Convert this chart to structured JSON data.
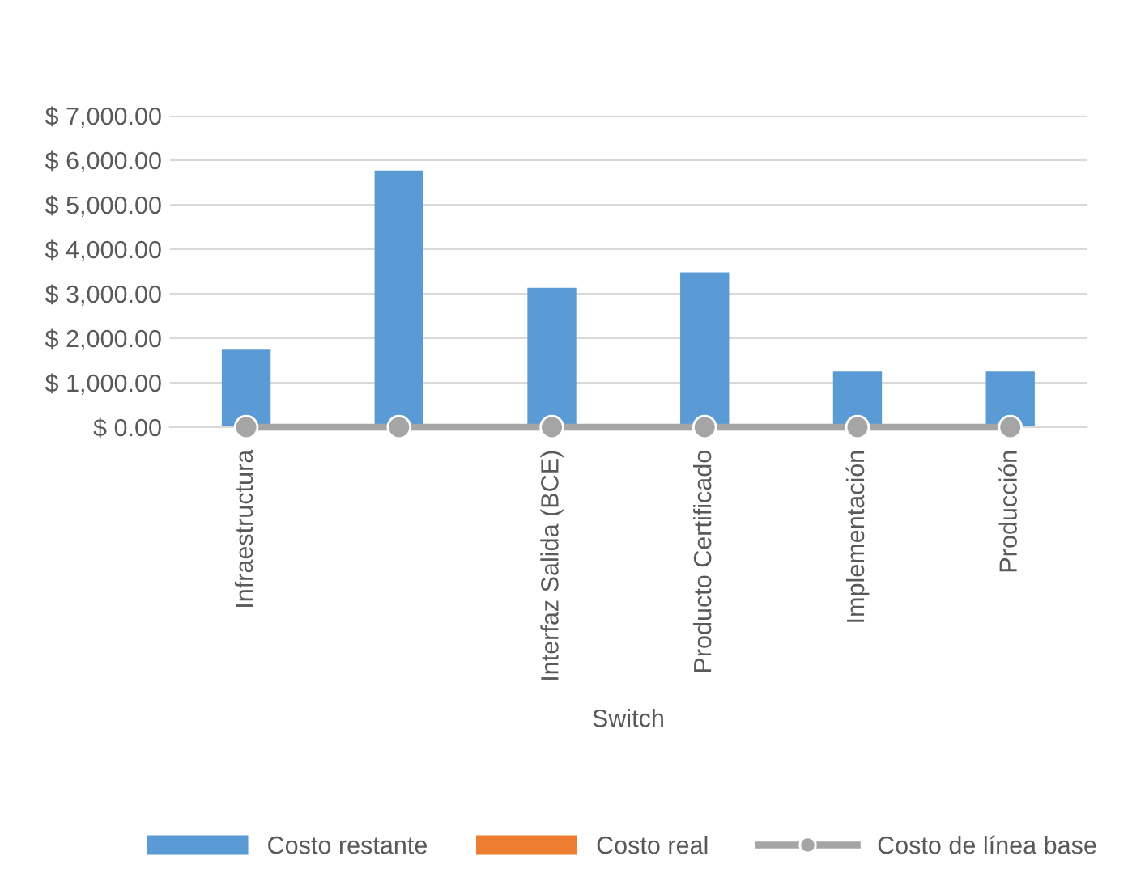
{
  "chart_data": {
    "type": "bar",
    "xlabel": "Switch",
    "categories": [
      "Infraestructura",
      null,
      "Interfaz Salida (BCE)",
      "Producto Certificado",
      "Implementación",
      "Producción"
    ],
    "series": [
      {
        "name": "Costo restante",
        "color": "#5b9bd5",
        "values": [
          1760,
          5770,
          3130,
          3480,
          1250,
          1250
        ]
      },
      {
        "name": "Costo real",
        "color": "#ed7d31",
        "values": [
          0,
          0,
          0,
          0,
          0,
          0
        ]
      },
      {
        "name": "Costo de línea base",
        "color": "#a5a5a5",
        "type": "line",
        "marker": "circle",
        "values": [
          0,
          0,
          0,
          0,
          0,
          0
        ]
      }
    ],
    "ylim": [
      0,
      7000
    ],
    "yticks": [
      {
        "value": 0,
        "label": "$ 0.00"
      },
      {
        "value": 1000,
        "label": "$ 1,000.00"
      },
      {
        "value": 2000,
        "label": "$ 2,000.00"
      },
      {
        "value": 3000,
        "label": "$ 3,000.00"
      },
      {
        "value": 4000,
        "label": "$ 4,000.00"
      },
      {
        "value": 5000,
        "label": "$ 5,000.00"
      },
      {
        "value": 6000,
        "label": "$ 6,000.00"
      },
      {
        "value": 7000,
        "label": "$ 7,000.00"
      }
    ],
    "grid": "y",
    "legend": "bottom"
  }
}
